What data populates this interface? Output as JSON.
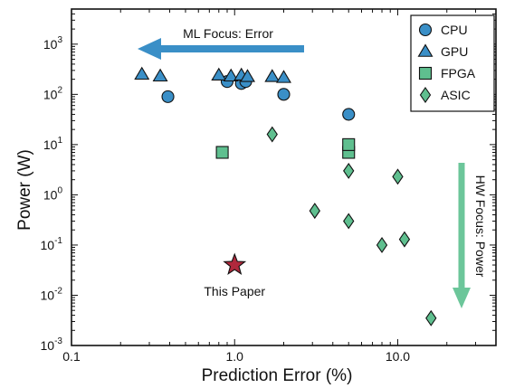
{
  "chart_data": {
    "type": "scatter",
    "xlabel": "Prediction Error (%)",
    "ylabel": "Power (W)",
    "x_scale": "log",
    "y_scale": "log",
    "xlim": [
      0.1,
      40
    ],
    "ylim": [
      0.001,
      5000
    ],
    "x_ticks": [
      {
        "value": 0.1,
        "label": "0.1"
      },
      {
        "value": 1,
        "label": "1.0"
      },
      {
        "value": 10,
        "label": "10.0"
      }
    ],
    "y_ticks": [
      {
        "value": 0.001,
        "base": "10",
        "exp": "-3"
      },
      {
        "value": 0.01,
        "base": "10",
        "exp": "-2"
      },
      {
        "value": 0.1,
        "base": "10",
        "exp": "-1"
      },
      {
        "value": 1,
        "base": "10",
        "exp": "0"
      },
      {
        "value": 10,
        "base": "10",
        "exp": "1"
      },
      {
        "value": 100,
        "base": "10",
        "exp": "2"
      },
      {
        "value": 1000,
        "base": "10",
        "exp": "3"
      }
    ],
    "grid": false,
    "legend_position": "top-right",
    "series": [
      {
        "name": "CPU",
        "marker": "circle",
        "color": "#3a8fc7",
        "points": [
          [
            0.39,
            90
          ],
          [
            0.9,
            180
          ],
          [
            1.1,
            165
          ],
          [
            1.17,
            180
          ],
          [
            2.0,
            100
          ],
          [
            5.0,
            40
          ]
        ]
      },
      {
        "name": "GPU",
        "marker": "triangle",
        "color": "#3a8fc7",
        "points": [
          [
            0.27,
            250
          ],
          [
            0.35,
            230
          ],
          [
            0.8,
            240
          ],
          [
            0.95,
            230
          ],
          [
            1.1,
            240
          ],
          [
            1.2,
            225
          ],
          [
            1.7,
            225
          ],
          [
            2.0,
            215
          ]
        ]
      },
      {
        "name": "FPGA",
        "marker": "square",
        "color": "#5fbf8f",
        "points": [
          [
            0.84,
            7
          ],
          [
            5.0,
            7
          ],
          [
            5.0,
            10
          ]
        ]
      },
      {
        "name": "ASIC",
        "marker": "diamond",
        "color": "#5fbf8f",
        "points": [
          [
            1.7,
            16
          ],
          [
            5.0,
            3.0
          ],
          [
            10.0,
            2.3
          ],
          [
            3.1,
            0.48
          ],
          [
            5.0,
            0.3
          ],
          [
            8.0,
            0.1
          ],
          [
            11.0,
            0.13
          ],
          [
            16.0,
            0.0035
          ]
        ]
      }
    ],
    "highlight": {
      "label": "This Paper",
      "marker": "star",
      "color": "#b0283c",
      "point": [
        1.0,
        0.04
      ]
    },
    "annotations": {
      "ml_focus": {
        "text": "ML Focus: Error",
        "color": "#3a8fc7"
      },
      "hw_focus": {
        "text": "HW Focus: Power",
        "color": "#6cc69a"
      }
    }
  }
}
